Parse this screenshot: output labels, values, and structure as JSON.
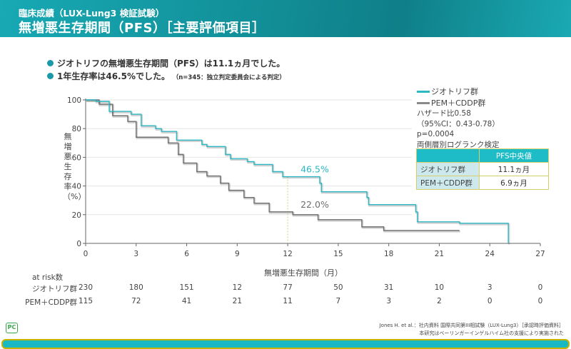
{
  "header": {
    "subtitle": "臨床成績（LUX-Lung3 検証試験）",
    "title": "無増悪生存期間（PFS）［主要評価項目］"
  },
  "bullets": [
    {
      "text": "ジオトリフの無増悪生存期間（PFS）は11.1ヵ月でした。"
    },
    {
      "text": "1年生存率は46.5%でした。",
      "note": "（n=345：独立判定委員会による判定）"
    }
  ],
  "legend": {
    "series1": "ジオトリフ群",
    "series2": "PEM＋CDDP群"
  },
  "stats": {
    "hr": "ハザード比0.58",
    "ci": "（95%CI：0.43-0.78）",
    "p": "p=0.0004",
    "test": "両側層別ログランク検定"
  },
  "median_table": {
    "header": "PFS中央値",
    "rows": [
      {
        "label": "ジオトリフ群",
        "value": "11.1ヵ月"
      },
      {
        "label": "PEM＋CDDP群",
        "value": "6.9ヵ月"
      }
    ]
  },
  "at_risk": {
    "title": "at risk数",
    "rows": [
      {
        "label": "ジオトリフ群",
        "values": [
          "230",
          "180",
          "151",
          "12",
          "77",
          "50",
          "31",
          "10",
          "3",
          "0"
        ]
      },
      {
        "label": "PEM＋CDDP群",
        "values": [
          "115",
          "72",
          "41",
          "21",
          "11",
          "7",
          "3",
          "2",
          "0",
          "0"
        ]
      }
    ]
  },
  "citation": {
    "line1": "Jones H. et al.：社内資料 国際共同第III相試験（LUX-Lung3）［承認時評価資料］",
    "line2": "本研究はベーリンガーインゲルハイム社の支援により実施された"
  },
  "logo": "PC",
  "colors": {
    "header": "#128f98",
    "series1": "#2bb7c4",
    "series2": "#6e6e6e",
    "table_header": "#1dbcc6",
    "table_border": "#d8cf6a"
  },
  "chart_data": {
    "type": "line",
    "step": true,
    "xlabel": "無増悪生存期間（月）",
    "ylabel": "無増悪生存率（%）",
    "xlim": [
      0,
      27
    ],
    "ylim": [
      0,
      100
    ],
    "xticks": [
      "0",
      "3",
      "6",
      "9",
      "12",
      "15",
      "18",
      "21",
      "24",
      "27"
    ],
    "yticks": [
      "0",
      "20",
      "40",
      "60",
      "80",
      "100"
    ],
    "grid": "horizontal",
    "annotations": [
      {
        "text": "46.5%",
        "x": 12,
        "y": 46.5,
        "series": "ジオトリフ群"
      },
      {
        "text": "22.0%",
        "x": 12,
        "y": 22.0,
        "series": "PEM＋CDDP群"
      }
    ],
    "reference_line_x": 12,
    "series": [
      {
        "name": "ジオトリフ群",
        "color": "#2bb7c4",
        "points": [
          [
            0,
            100
          ],
          [
            0.6,
            99
          ],
          [
            1.4,
            92
          ],
          [
            2.7,
            90
          ],
          [
            3.3,
            82
          ],
          [
            4.15,
            80
          ],
          [
            4.5,
            78
          ],
          [
            5.4,
            72
          ],
          [
            6.9,
            69
          ],
          [
            7.2,
            67.5
          ],
          [
            8.3,
            62
          ],
          [
            8.6,
            59
          ],
          [
            9.6,
            57
          ],
          [
            10.0,
            55
          ],
          [
            11.1,
            50
          ],
          [
            11.7,
            46.5
          ],
          [
            13.9,
            42
          ],
          [
            14.0,
            36
          ],
          [
            16.7,
            32
          ],
          [
            16.8,
            27
          ],
          [
            19.6,
            22
          ],
          [
            19.7,
            15
          ],
          [
            22.2,
            14
          ],
          [
            25.1,
            14
          ],
          [
            25.1,
            0
          ]
        ]
      },
      {
        "name": "PEM＋CDDP群",
        "color": "#6e6e6e",
        "points": [
          [
            0,
            100
          ],
          [
            0.8,
            97
          ],
          [
            1.6,
            89
          ],
          [
            2.5,
            85
          ],
          [
            3.0,
            74
          ],
          [
            4.9,
            70
          ],
          [
            5.5,
            62
          ],
          [
            5.8,
            56
          ],
          [
            6.6,
            50
          ],
          [
            7.2,
            47
          ],
          [
            8.0,
            42
          ],
          [
            8.5,
            37
          ],
          [
            9.4,
            32
          ],
          [
            10.0,
            28
          ],
          [
            10.9,
            22
          ],
          [
            12.3,
            20
          ],
          [
            13.8,
            16.5
          ],
          [
            16.4,
            11.5
          ],
          [
            17.7,
            9
          ],
          [
            22.2,
            9
          ]
        ]
      }
    ]
  }
}
